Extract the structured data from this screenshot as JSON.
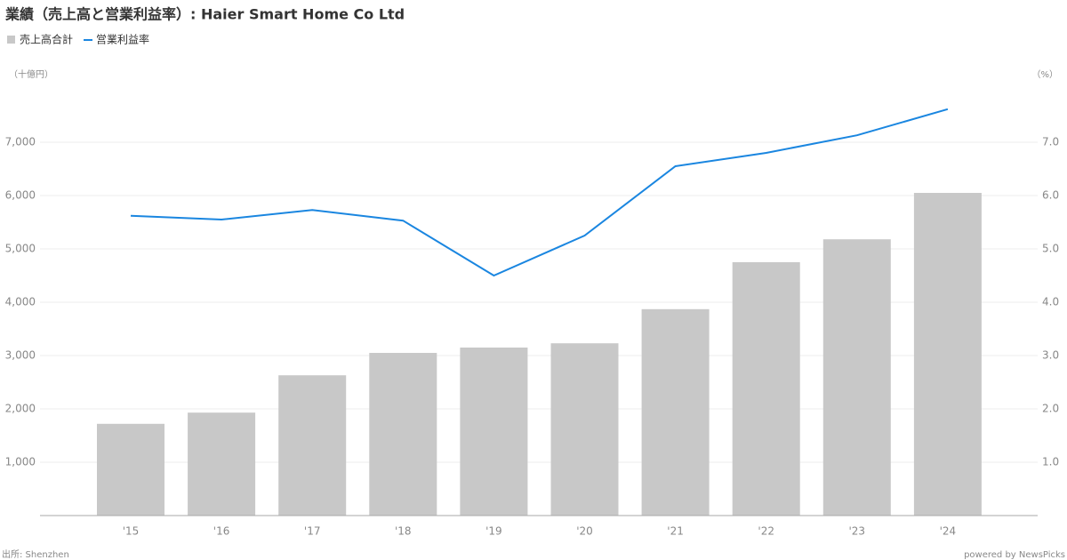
{
  "chart_data": {
    "type": "bar_line",
    "title": "業績（売上高と営業利益率）: Haier Smart Home Co Ltd",
    "y_axis_label": "（十億円）",
    "y2_axis_label": "（%）",
    "source": "出所: Shenzhen",
    "credit": "powered by NewsPicks",
    "categories": [
      "'15",
      "'16",
      "'17",
      "'18",
      "'19",
      "'20",
      "'21",
      "'22",
      "'23",
      "'24"
    ],
    "series": [
      {
        "name": "売上高合計",
        "type": "bar",
        "color": "#c8c8c8",
        "axis": "y",
        "values": [
          1720,
          1930,
          2630,
          3050,
          3150,
          3230,
          3870,
          4750,
          5180,
          6050
        ]
      },
      {
        "name": "営業利益率",
        "type": "line",
        "color": "#1a86e0",
        "axis": "y2",
        "values": [
          5.62,
          5.55,
          5.73,
          5.53,
          4.5,
          5.25,
          6.55,
          6.8,
          7.13,
          7.62
        ]
      }
    ],
    "ylim": [
      0,
      8000
    ],
    "yticks": [
      {
        "value": 1000,
        "label": "1,000"
      },
      {
        "value": 2000,
        "label": "2,000"
      },
      {
        "value": 3000,
        "label": "3,000"
      },
      {
        "value": 4000,
        "label": "4,000"
      },
      {
        "value": 5000,
        "label": "5,000"
      },
      {
        "value": 6000,
        "label": "6,000"
      },
      {
        "value": 7000,
        "label": "7,000"
      }
    ],
    "y2lim": [
      0,
      8
    ],
    "y2ticks": [
      {
        "value": 1,
        "label": "1.0"
      },
      {
        "value": 2,
        "label": "2.0"
      },
      {
        "value": 3,
        "label": "3.0"
      },
      {
        "value": 4,
        "label": "4.0"
      },
      {
        "value": 5,
        "label": "5.0"
      },
      {
        "value": 6,
        "label": "6.0"
      },
      {
        "value": 7,
        "label": "7.0"
      }
    ],
    "grid": true
  }
}
